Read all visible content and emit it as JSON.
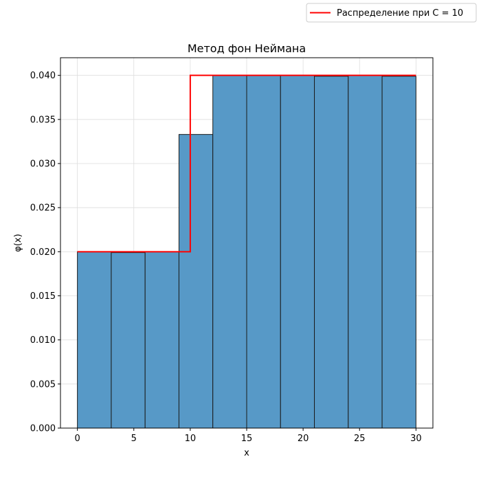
{
  "chart_data": {
    "type": "bar",
    "title": "Метод фон Неймана",
    "xlabel": "x",
    "ylabel": "φ(x)",
    "xlim": [
      -1.5,
      31.5
    ],
    "ylim": [
      0,
      0.042
    ],
    "xticks": [
      0,
      5,
      10,
      15,
      20,
      25,
      30
    ],
    "yticks": [
      0.0,
      0.005,
      0.01,
      0.015,
      0.02,
      0.025,
      0.03,
      0.035,
      0.04
    ],
    "grid": true,
    "histogram": {
      "bin_edges": [
        0,
        3,
        6,
        9,
        12,
        15,
        18,
        21,
        24,
        27,
        30
      ],
      "values": [
        0.02,
        0.0199,
        0.02,
        0.0333,
        0.04,
        0.04,
        0.04,
        0.0399,
        0.04,
        0.0399
      ],
      "color": "#5799c7",
      "edge_color": "#1a1a1a"
    },
    "series": [
      {
        "name": "Распределение при C = 10",
        "type": "step",
        "color": "#ff0000",
        "x": [
          0,
          10,
          10,
          30
        ],
        "y": [
          0.02,
          0.02,
          0.04,
          0.04
        ]
      }
    ],
    "legend_position": "top-right"
  }
}
